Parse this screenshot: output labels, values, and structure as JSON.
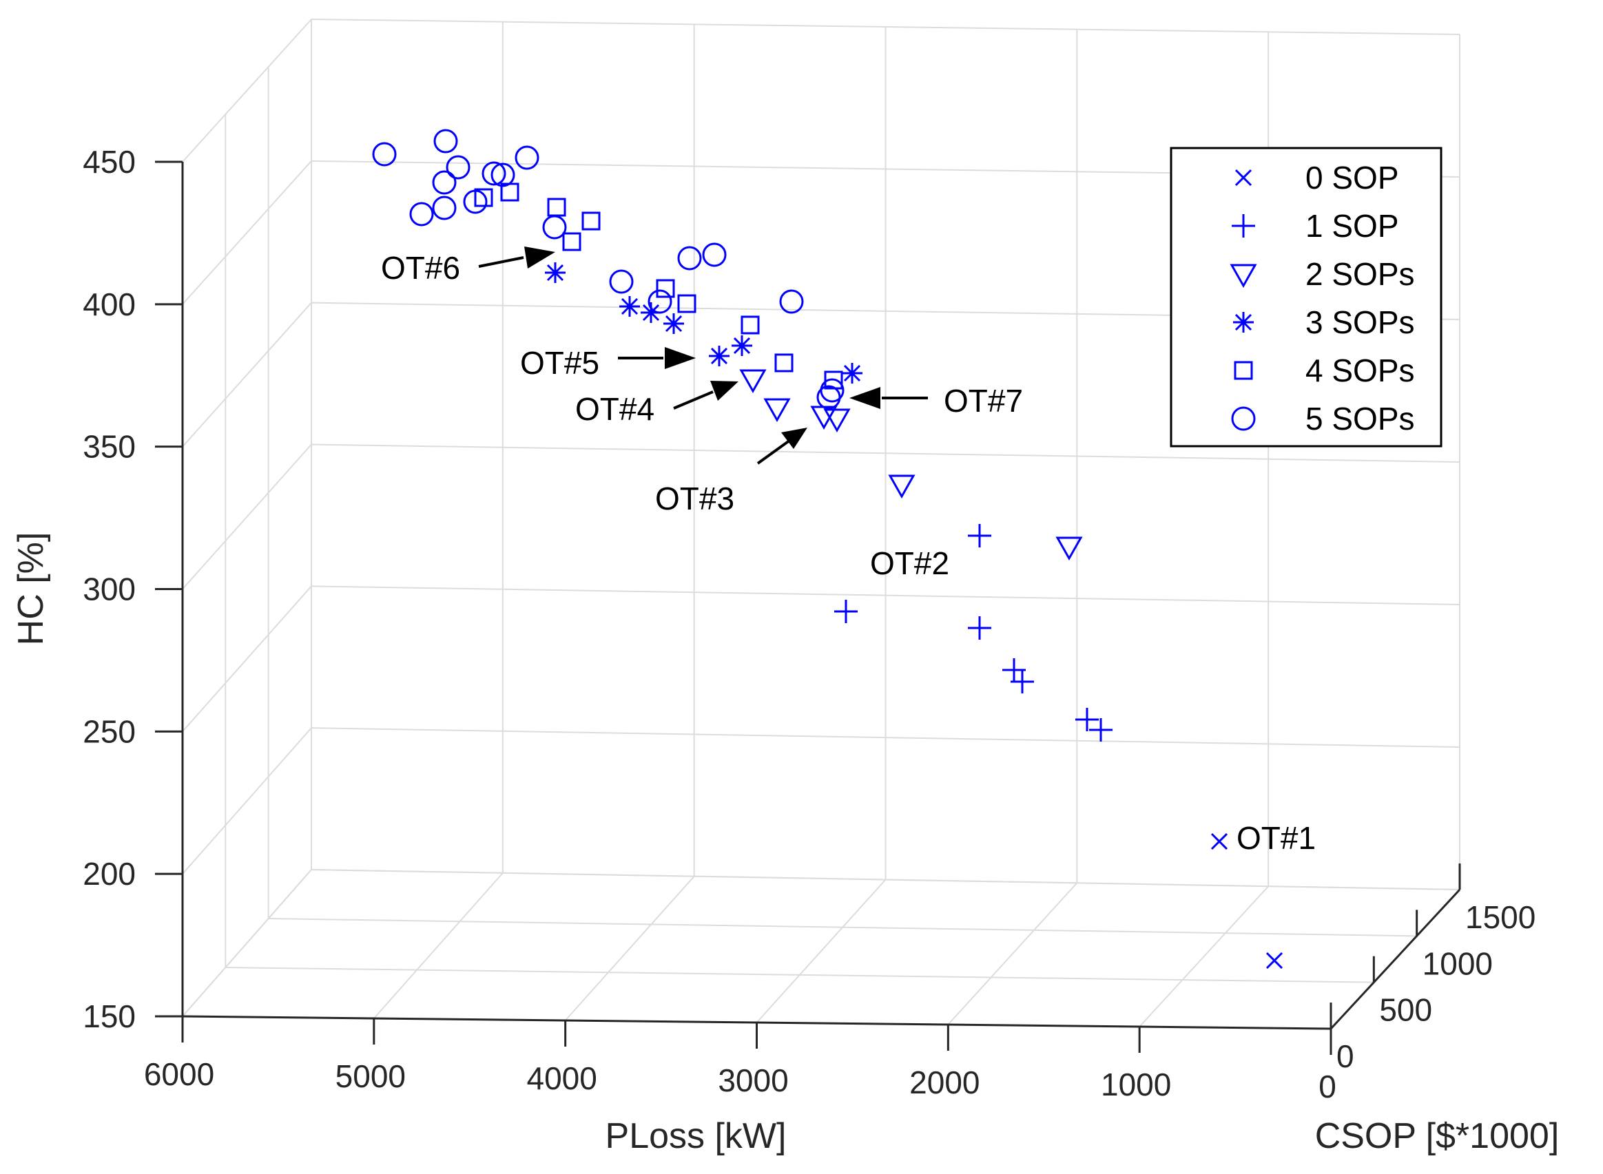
{
  "chart_data": {
    "type": "scatter3d",
    "title": "",
    "xlabel": "PLoss [kW]",
    "ylabel": "CSOP [$*1000]",
    "zlabel": "HC [%]",
    "xlim": [
      0,
      6000
    ],
    "ylim": [
      0,
      1500
    ],
    "zlim": [
      150,
      450
    ],
    "x_ticks": [
      "6000",
      "5000",
      "4000",
      "3000",
      "2000",
      "1000",
      "0"
    ],
    "y_ticks": [
      "0",
      "500",
      "1000",
      "1500"
    ],
    "z_ticks": [
      "150",
      "200",
      "250",
      "300",
      "350",
      "400",
      "450"
    ],
    "grid": true,
    "legend_position": "top-right",
    "series": [
      {
        "name": "0 SOP",
        "marker": "x",
        "points_screen": [
          [
            1770,
            1222
          ],
          [
            1850,
            1395
          ]
        ]
      },
      {
        "name": "1 SOP",
        "marker": "+",
        "points_screen": [
          [
            1422,
            778
          ],
          [
            1228,
            888
          ],
          [
            1422,
            912
          ],
          [
            1472,
            973
          ],
          [
            1484,
            990
          ],
          [
            1578,
            1045
          ],
          [
            1598,
            1060
          ]
        ]
      },
      {
        "name": "2 SOPs",
        "marker": "triangle-down",
        "points_screen": [
          [
            1093,
            551
          ],
          [
            1128,
            593
          ],
          [
            1196,
            604
          ],
          [
            1215,
            608
          ],
          [
            1309,
            704
          ],
          [
            1552,
            794
          ]
        ]
      },
      {
        "name": "3 SOPs",
        "marker": "*",
        "points_screen": [
          [
            806,
            396
          ],
          [
            914,
            445
          ],
          [
            945,
            454
          ],
          [
            978,
            470
          ],
          [
            1044,
            517
          ],
          [
            1077,
            502
          ],
          [
            1237,
            542
          ]
        ]
      },
      {
        "name": "4 SOPs",
        "marker": "square",
        "points_screen": [
          [
            702,
            287
          ],
          [
            740,
            279
          ],
          [
            808,
            301
          ],
          [
            858,
            321
          ],
          [
            830,
            351
          ],
          [
            966,
            419
          ],
          [
            997,
            441
          ],
          [
            1089,
            472
          ],
          [
            1138,
            527
          ],
          [
            1210,
            552
          ]
        ]
      },
      {
        "name": "5 SOPs",
        "marker": "circle",
        "points_screen": [
          [
            558,
            224
          ],
          [
            647,
            205
          ],
          [
            665,
            243
          ],
          [
            645,
            265
          ],
          [
            717,
            252
          ],
          [
            730,
            254
          ],
          [
            765,
            229
          ],
          [
            612,
            311
          ],
          [
            645,
            302
          ],
          [
            690,
            293
          ],
          [
            805,
            330
          ],
          [
            902,
            409
          ],
          [
            958,
            438
          ],
          [
            1001,
            375
          ],
          [
            1037,
            370
          ],
          [
            1149,
            438
          ],
          [
            1203,
            577
          ],
          [
            1208,
            567
          ]
        ]
      }
    ],
    "annotations": [
      "OT#1",
      "OT#2",
      "OT#3",
      "OT#4",
      "OT#5",
      "OT#6",
      "OT#7"
    ]
  }
}
